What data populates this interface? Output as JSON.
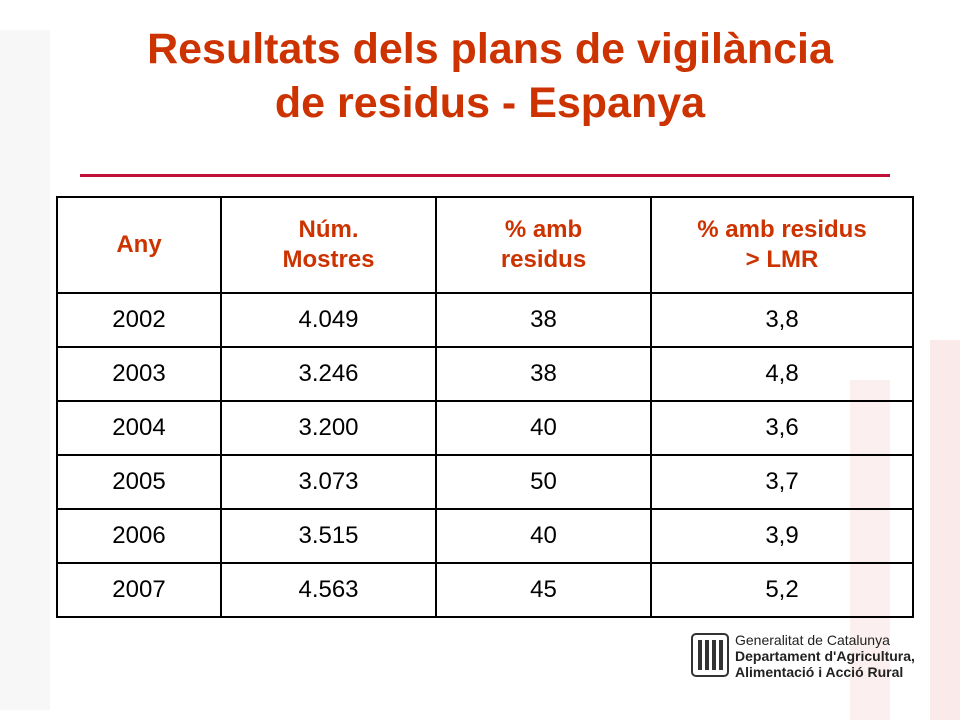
{
  "header": {
    "title_lines": [
      "Resultats dels plans de vigilància",
      "de residus - Espanya"
    ]
  },
  "table": {
    "columns": [
      [
        "Any"
      ],
      [
        "Núm.",
        "Mostres"
      ],
      [
        "% amb",
        "residus"
      ],
      [
        "% amb residus",
        "> LMR"
      ]
    ],
    "rows": [
      [
        "2002",
        "4.049",
        "38",
        "3,8"
      ],
      [
        "2003",
        "3.246",
        "38",
        "4,8"
      ],
      [
        "2004",
        "3.200",
        "40",
        "3,6"
      ],
      [
        "2005",
        "3.073",
        "50",
        "3,7"
      ],
      [
        "2006",
        "3.515",
        "40",
        "3,9"
      ],
      [
        "2007",
        "4.563",
        "45",
        "5,2"
      ]
    ]
  },
  "footer": {
    "logo_lines": [
      "Generalitat de Catalunya",
      "Departament d'Agricultura,",
      "Alimentació i Acció Rural"
    ]
  }
}
